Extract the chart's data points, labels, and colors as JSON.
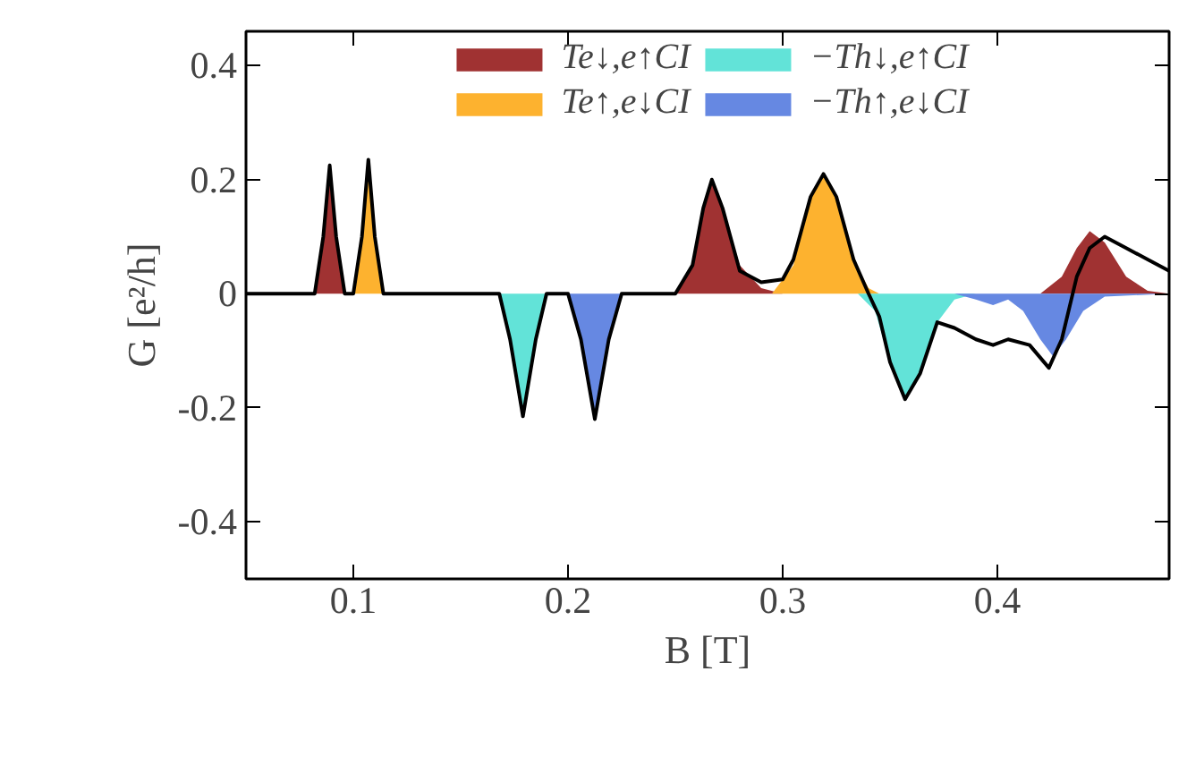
{
  "chart_data": {
    "type": "area",
    "xlabel": "B [T]",
    "ylabel": "G [e²/h]",
    "xlim": [
      0.05,
      0.48
    ],
    "ylim": [
      -0.5,
      0.46
    ],
    "xticks": [
      0.1,
      0.2,
      0.3,
      0.4
    ],
    "yticks": [
      -0.4,
      -0.2,
      0,
      0.2,
      0.4
    ],
    "grid": false,
    "legend": "top",
    "series": [
      {
        "name": "Te↓,e↑CI",
        "color": "#a03232",
        "x": [
          0.05,
          0.082,
          0.086,
          0.089,
          0.092,
          0.096,
          0.25,
          0.258,
          0.263,
          0.267,
          0.272,
          0.28,
          0.29,
          0.3,
          0.42,
          0.43,
          0.437,
          0.443,
          0.45,
          0.46,
          0.47,
          0.48
        ],
        "values": [
          0,
          0,
          0.1,
          0.225,
          0.1,
          0,
          0,
          0.05,
          0.15,
          0.2,
          0.15,
          0.05,
          0.01,
          0,
          0,
          0.03,
          0.08,
          0.11,
          0.09,
          0.03,
          0.005,
          0
        ]
      },
      {
        "name": "Te↑,e↓CI",
        "color": "#fdb22f",
        "x": [
          0.05,
          0.1,
          0.104,
          0.107,
          0.11,
          0.114,
          0.295,
          0.305,
          0.313,
          0.319,
          0.325,
          0.333,
          0.34,
          0.345,
          0.48
        ],
        "values": [
          0,
          0,
          0.1,
          0.235,
          0.1,
          0,
          0,
          0.05,
          0.17,
          0.21,
          0.17,
          0.06,
          0.01,
          0,
          0
        ]
      },
      {
        "name": "−Th↓,e↑CI",
        "color": "#62e3d8",
        "x": [
          0.05,
          0.168,
          0.173,
          0.179,
          0.185,
          0.19,
          0.335,
          0.343,
          0.35,
          0.357,
          0.364,
          0.372,
          0.38,
          0.39,
          0.48
        ],
        "values": [
          0,
          0,
          -0.08,
          -0.215,
          -0.08,
          0,
          0,
          -0.03,
          -0.12,
          -0.185,
          -0.14,
          -0.05,
          -0.01,
          0,
          0
        ]
      },
      {
        "name": "−Th↑,e↓CI",
        "color": "#6688e2",
        "x": [
          0.05,
          0.2,
          0.206,
          0.2125,
          0.219,
          0.225,
          0.38,
          0.39,
          0.398,
          0.405,
          0.412,
          0.42,
          0.426,
          0.432,
          0.44,
          0.45,
          0.48
        ],
        "values": [
          0,
          0,
          -0.08,
          -0.22,
          -0.08,
          0,
          0,
          -0.01,
          -0.02,
          -0.01,
          -0.03,
          -0.08,
          -0.11,
          -0.08,
          -0.03,
          -0.005,
          0
        ]
      },
      {
        "type": "line",
        "color": "#000000",
        "x": [
          0.05,
          0.082,
          0.086,
          0.089,
          0.092,
          0.096,
          0.1,
          0.104,
          0.107,
          0.11,
          0.114,
          0.168,
          0.173,
          0.179,
          0.185,
          0.19,
          0.2,
          0.206,
          0.2125,
          0.219,
          0.225,
          0.25,
          0.258,
          0.263,
          0.267,
          0.272,
          0.28,
          0.29,
          0.3,
          0.305,
          0.313,
          0.319,
          0.325,
          0.333,
          0.34,
          0.345,
          0.35,
          0.357,
          0.364,
          0.372,
          0.38,
          0.39,
          0.398,
          0.405,
          0.415,
          0.424,
          0.43,
          0.437,
          0.443,
          0.45,
          0.46,
          0.47,
          0.48
        ],
        "values": [
          0,
          0,
          0.1,
          0.225,
          0.1,
          0,
          0,
          0.1,
          0.235,
          0.1,
          0,
          0,
          -0.08,
          -0.215,
          -0.08,
          0,
          0,
          -0.08,
          -0.22,
          -0.08,
          0,
          0,
          0.05,
          0.15,
          0.2,
          0.15,
          0.04,
          0.02,
          0.025,
          0.06,
          0.17,
          0.21,
          0.17,
          0.06,
          0,
          -0.04,
          -0.12,
          -0.185,
          -0.14,
          -0.05,
          -0.06,
          -0.08,
          -0.09,
          -0.08,
          -0.09,
          -0.13,
          -0.08,
          0.03,
          0.08,
          0.1,
          0.08,
          0.06,
          0.04
        ]
      }
    ]
  }
}
